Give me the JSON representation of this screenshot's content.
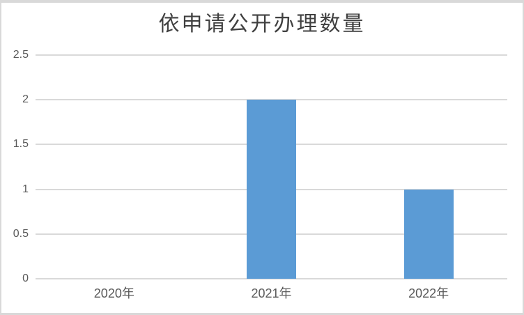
{
  "chart_data": {
    "type": "bar",
    "title": "依申请公开办理数量",
    "categories": [
      "2020年",
      "2021年",
      "2022年"
    ],
    "values": [
      0,
      2,
      1
    ],
    "xlabel": "",
    "ylabel": "",
    "ylim": [
      0,
      2.5
    ],
    "yticks": [
      0,
      0.5,
      1,
      1.5,
      2,
      2.5
    ],
    "ytick_labels": [
      "0",
      "0.5",
      "1",
      "1.5",
      "2",
      "2.5"
    ],
    "grid": "horizontal gridlines on, vertical off",
    "legend_position": "none",
    "bar_color": "#5B9BD5"
  },
  "colors": {
    "bar": "#5B9BD5",
    "gridline": "#D9D9D9",
    "frame_border": "#D9D9D9",
    "title_text": "#404040",
    "axis_text": "#595959",
    "background": "#FFFFFF"
  }
}
